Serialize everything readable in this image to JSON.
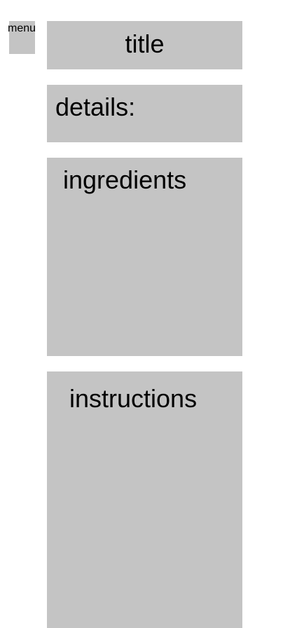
{
  "menu": {
    "label": "menu"
  },
  "header": {
    "title": "title"
  },
  "sections": {
    "details": "details:",
    "ingredients": "ingredients",
    "instructions": "instructions"
  },
  "colors": {
    "box_fill": "#c4c4c4",
    "background": "#ffffff",
    "text": "#000000"
  }
}
